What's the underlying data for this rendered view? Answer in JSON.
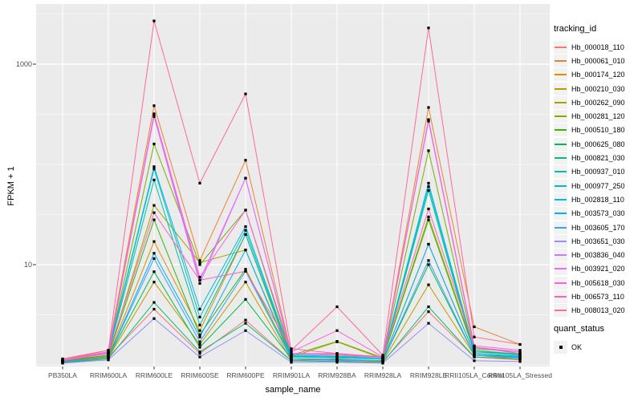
{
  "chart_data": {
    "type": "line",
    "xlabel": "sample_name",
    "ylabel": "FPKM + 1",
    "y_scale": "log10",
    "ylim": [
      1,
      3980
    ],
    "grid": "on",
    "panel_bg": "#EBEBEB",
    "grid_color": "#FFFFFF",
    "marker_color": "#000000",
    "marker_shape": "square",
    "y_ticks": [
      {
        "value": 1000,
        "label": "1000"
      },
      {
        "value": 10,
        "label": "10"
      }
    ],
    "y_minor_gridlines": [
      1,
      3.162,
      31.62,
      100,
      316.2,
      3162
    ],
    "categories": [
      "PB350LA",
      "RRIM600LA",
      "RRIM600LE",
      "RRIM600SE",
      "RRIM600PE",
      "RRIM901LA",
      "RRIM928BA",
      "RRIM928LA",
      "RRIM928LE",
      "RRII105LA_Control",
      "RRII105LA_Stressed"
    ],
    "legend_title": "tracking_id",
    "legend_position": "right",
    "quant_legend": {
      "title": "quant_status",
      "items": [
        {
          "label": "OK",
          "marker": "black-square"
        }
      ]
    },
    "series": [
      {
        "name": "Hb_000018_110",
        "color": "#F8766D",
        "values": [
          1.1,
          1.2,
          3.6,
          1.3,
          2.8,
          1.1,
          1.1,
          1.08,
          3.4,
          1.2,
          1.12
        ]
      },
      {
        "name": "Hb_000061_010",
        "color": "#EA8331",
        "values": [
          1.12,
          1.4,
          385,
          11.0,
          110,
          1.3,
          1.28,
          1.18,
          370,
          2.4,
          1.6
        ]
      },
      {
        "name": "Hb_000174_120",
        "color": "#D89000",
        "values": [
          1.08,
          1.22,
          17,
          2.2,
          20,
          1.15,
          1.12,
          1.1,
          16,
          1.3,
          1.2
        ]
      },
      {
        "name": "Hb_000210_030",
        "color": "#C09B00",
        "values": [
          1.05,
          1.18,
          6.7,
          1.6,
          6.7,
          1.1,
          1.15,
          1.08,
          6.3,
          1.25,
          1.15
        ]
      },
      {
        "name": "Hb_000262_090",
        "color": "#A3A500",
        "values": [
          1.1,
          1.25,
          39,
          10.5,
          14,
          1.2,
          1.7,
          1.15,
          30,
          1.4,
          1.25
        ]
      },
      {
        "name": "Hb_000281_120",
        "color": "#7CAE00",
        "values": [
          1.1,
          1.3,
          160,
          10.0,
          35,
          1.25,
          1.72,
          1.18,
          137,
          1.45,
          1.35
        ]
      },
      {
        "name": "Hb_000510_180",
        "color": "#39B600",
        "values": [
          1.08,
          1.25,
          28,
          2.0,
          9.0,
          1.2,
          1.2,
          1.14,
          28,
          1.35,
          1.3
        ]
      },
      {
        "name": "Hb_000625_080",
        "color": "#00BB4E",
        "values": [
          1.06,
          1.2,
          8.5,
          1.5,
          4.5,
          1.15,
          1.12,
          1.1,
          10,
          1.25,
          1.2
        ]
      },
      {
        "name": "Hb_000821_030",
        "color": "#00BF7D",
        "values": [
          1.05,
          1.15,
          4.2,
          1.35,
          2.6,
          1.1,
          1.08,
          1.06,
          3.8,
          1.2,
          1.15
        ]
      },
      {
        "name": "Hb_000937_010",
        "color": "#00C1A3",
        "values": [
          1.1,
          1.3,
          70,
          2.5,
          20,
          1.2,
          1.18,
          1.14,
          55,
          1.3,
          1.22
        ]
      },
      {
        "name": "Hb_000977_250",
        "color": "#00BFC4",
        "values": [
          1.1,
          1.32,
          90,
          3.0,
          22,
          1.22,
          1.2,
          1.15,
          60,
          1.35,
          1.25
        ]
      },
      {
        "name": "Hb_002818_110",
        "color": "#00BAE0",
        "values": [
          1.12,
          1.35,
          95,
          3.6,
          24,
          1.25,
          1.22,
          1.18,
          65,
          1.4,
          1.28
        ]
      },
      {
        "name": "Hb_003573_030",
        "color": "#00B0F6",
        "values": [
          1.06,
          1.2,
          13,
          1.9,
          14,
          1.15,
          1.14,
          1.1,
          16,
          1.3,
          1.2
        ]
      },
      {
        "name": "Hb_003605_170",
        "color": "#35A2FF",
        "values": [
          1.06,
          1.2,
          11.5,
          1.7,
          8.6,
          1.14,
          1.12,
          1.1,
          11,
          1.25,
          1.18
        ]
      },
      {
        "name": "Hb_003651_030",
        "color": "#9590FF",
        "values": [
          1.04,
          1.12,
          2.9,
          1.2,
          2.2,
          1.06,
          1.06,
          1.04,
          2.6,
          1.1,
          1.08
        ]
      },
      {
        "name": "Hb_003836_040",
        "color": "#C77CFF",
        "values": [
          1.1,
          1.3,
          300,
          6.5,
          73,
          1.28,
          1.25,
          1.18,
          270,
          1.5,
          1.3
        ]
      },
      {
        "name": "Hb_003921_020",
        "color": "#E76BF3",
        "values": [
          1.1,
          1.32,
          310,
          7.0,
          73,
          1.3,
          1.3,
          1.2,
          275,
          1.5,
          1.35
        ]
      },
      {
        "name": "Hb_005618_030",
        "color": "#FA62DB",
        "values": [
          1.12,
          1.35,
          320,
          7.5,
          35,
          1.35,
          2.2,
          1.2,
          280,
          1.55,
          1.4
        ]
      },
      {
        "name": "Hb_006573_110",
        "color": "#FF62BC",
        "values": [
          1.1,
          1.3,
          33,
          7.0,
          8.6,
          1.45,
          1.3,
          1.2,
          36,
          1.5,
          1.3
        ]
      },
      {
        "name": "Hb_008013_020",
        "color": "#FF6A98",
        "values": [
          1.15,
          1.4,
          2700,
          65,
          505,
          1.4,
          3.8,
          1.25,
          2300,
          1.9,
          1.6
        ]
      }
    ]
  }
}
